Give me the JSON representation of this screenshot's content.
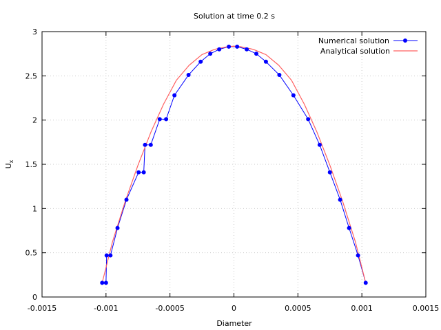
{
  "chart_data": {
    "type": "line",
    "title": "Solution at time 0.2 s",
    "xlabel": "Diameter",
    "ylabel_main": "U",
    "ylabel_sub": "x",
    "xlim": [
      -0.0015,
      0.0015
    ],
    "ylim": [
      0,
      3
    ],
    "xticks": [
      -0.0015,
      -0.001,
      -0.0005,
      0,
      0.0005,
      0.001,
      0.0015
    ],
    "xtick_labels": [
      "-0.0015",
      "-0.001",
      "-0.0005",
      "0",
      "0.0005",
      "0.001",
      "0.0015"
    ],
    "yticks": [
      0,
      0.5,
      1,
      1.5,
      2,
      2.5,
      3
    ],
    "ytick_labels": [
      "0",
      "0.5",
      "1",
      "1.5",
      "2",
      "2.5",
      "3"
    ],
    "grid": true,
    "legend_position": "top-right",
    "series": [
      {
        "name": "Numerical solution",
        "style": "line-points",
        "color": "#0000ff",
        "marker_color": "#0000ff",
        "x": [
          -0.00103,
          -0.001,
          -0.000995,
          -0.000965,
          -0.00091,
          -0.00084,
          -0.000745,
          -0.000705,
          -0.000695,
          -0.00065,
          -0.00058,
          -0.00053,
          -0.000465,
          -0.000355,
          -0.00026,
          -0.000185,
          -0.000115,
          -4e-05,
          2.5e-05,
          0.0001,
          0.000175,
          0.00025,
          0.000355,
          0.000465,
          0.00058,
          0.00067,
          0.00075,
          0.00083,
          0.0009,
          0.00097,
          0.00103
        ],
        "y": [
          0.16,
          0.16,
          0.47,
          0.47,
          0.78,
          1.1,
          1.41,
          1.41,
          1.72,
          1.72,
          2.01,
          2.01,
          2.28,
          2.51,
          2.66,
          2.75,
          2.8,
          2.83,
          2.83,
          2.8,
          2.75,
          2.66,
          2.51,
          2.28,
          2.01,
          1.72,
          1.41,
          1.1,
          0.78,
          0.47,
          0.16
        ]
      },
      {
        "name": "Analytical solution",
        "style": "line",
        "color": "#ff6060",
        "x": [
          -0.00103,
          -0.00095,
          -0.00085,
          -0.00075,
          -0.00065,
          -0.00055,
          -0.00045,
          -0.00035,
          -0.00025,
          -0.00015,
          -5e-05,
          0,
          5e-05,
          0.00015,
          0.00025,
          0.00035,
          0.00045,
          0.00055,
          0.00065,
          0.00075,
          0.00085,
          0.00095,
          0.00103
        ],
        "y": [
          0.16,
          0.62,
          1.08,
          1.49,
          1.86,
          2.18,
          2.45,
          2.62,
          2.74,
          2.8,
          2.83,
          2.835,
          2.83,
          2.8,
          2.74,
          2.62,
          2.45,
          2.18,
          1.86,
          1.49,
          1.08,
          0.62,
          0.16
        ]
      }
    ]
  }
}
